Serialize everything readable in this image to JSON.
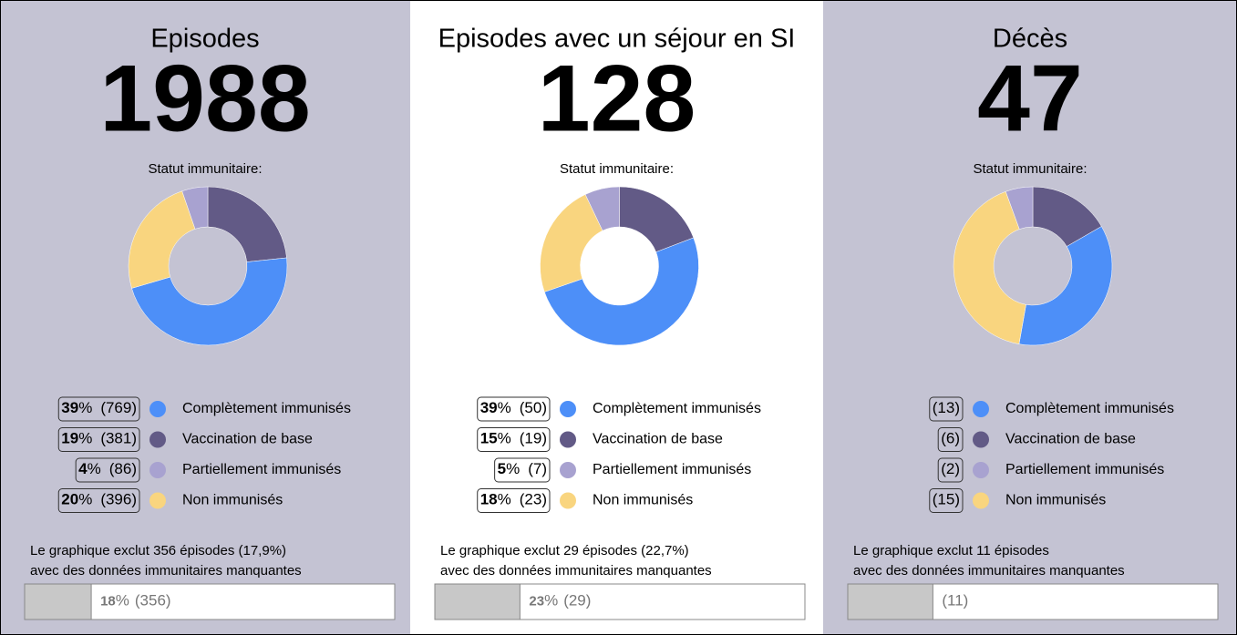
{
  "chart_data": [
    {
      "type": "donut",
      "title": "Episodes",
      "total": 1988,
      "subtitle": "Statut immunitaire:",
      "categories": [
        "Complètement immunisés",
        "Vaccination de base",
        "Partiellement immunisés",
        "Non immunisés"
      ],
      "values": [
        769,
        381,
        86,
        396
      ],
      "value_labels": [
        "(769)",
        "(381)",
        "(86)",
        "(396)"
      ],
      "percents": [
        39,
        19,
        4,
        20
      ],
      "percent_sign": "%",
      "colors": [
        "#4d8ff8",
        "#625a86",
        "#a8a2d0",
        "#f9d57f"
      ],
      "background": "#c4c3d3",
      "note_lines": [
        "Le graphique  exclut 356 épisodes  (17,9%)",
        "avec des données  immunitaires  manquantes"
      ],
      "missing_percent": 18,
      "missing_value": 356,
      "missing_label": "(356)"
    },
    {
      "type": "donut",
      "title": "Episodes avec un séjour en SI",
      "total": 128,
      "subtitle": "Statut immunitaire:",
      "categories": [
        "Complètement immunisés",
        "Vaccination de base",
        "Partiellement immunisés",
        "Non immunisés"
      ],
      "values": [
        50,
        19,
        7,
        23
      ],
      "value_labels": [
        "(50)",
        "(19)",
        "(7)",
        "(23)"
      ],
      "percents": [
        39,
        15,
        5,
        18
      ],
      "percent_sign": "%",
      "colors": [
        "#4d8ff8",
        "#625a86",
        "#a8a2d0",
        "#f9d57f"
      ],
      "background": "#ffffff",
      "note_lines": [
        "Le graphique  exclut 29 épisodes  (22,7%)",
        "avec des données  immunitaires  manquantes"
      ],
      "missing_percent": 23,
      "missing_value": 29,
      "missing_label": "(29)"
    },
    {
      "type": "donut",
      "title": "Décès",
      "total": 47,
      "subtitle": "Statut immunitaire:",
      "categories": [
        "Complètement immunisés",
        "Vaccination de base",
        "Partiellement immunisés",
        "Non immunisés"
      ],
      "values": [
        13,
        6,
        2,
        15
      ],
      "value_labels": [
        "(13)",
        "(6)",
        "(2)",
        "(15)"
      ],
      "colors": [
        "#4d8ff8",
        "#625a86",
        "#a8a2d0",
        "#f9d57f"
      ],
      "background": "#c4c3d3",
      "note_lines": [
        "Le graphique  exclut 11 épisodes",
        "avec des données  immunitaires  manquantes"
      ],
      "missing_share": 23,
      "missing_value": 11,
      "missing_label": "(11)"
    }
  ]
}
